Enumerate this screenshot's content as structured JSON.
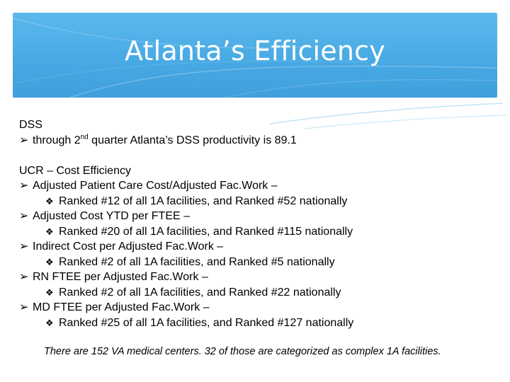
{
  "title": "Atlanta’s Efficiency",
  "dss": {
    "heading": "DSS",
    "bullet_prefix": "through 2",
    "bullet_sup": "nd",
    "bullet_suffix": " quarter Atlanta’s DSS productivity is 89.1"
  },
  "ucr": {
    "heading": "UCR – Cost Efficiency",
    "items": [
      {
        "label": "Adjusted Patient Care  Cost/Adjusted Fac.Work –",
        "detail": "Ranked #12 of all 1A facilities, and Ranked #52 nationally"
      },
      {
        "label": "Adjusted Cost YTD per FTEE –",
        "detail": "Ranked #20 of all 1A facilities, and Ranked #115 nationally"
      },
      {
        "label": "Indirect Cost per Adjusted Fac.Work –",
        "detail": "Ranked #2 of all 1A facilities, and Ranked #5 nationally"
      },
      {
        "label": "RN FTEE per Adjusted Fac.Work –",
        "detail": "Ranked #2 of all 1A facilities, and Ranked #22 nationally"
      },
      {
        "label": "MD FTEE per Adjusted Fac.Work –",
        "detail": "Ranked #25 of all 1A facilities, and Ranked #127 nationally"
      }
    ]
  },
  "footnote": "There are 152 VA medical centers.  32 of those are categorized as complex 1A facilities.",
  "glyphs": {
    "arrow": "➢",
    "diamond": "❖"
  },
  "colors": {
    "header": "#47a9e3",
    "title_text": "#ffffff"
  }
}
